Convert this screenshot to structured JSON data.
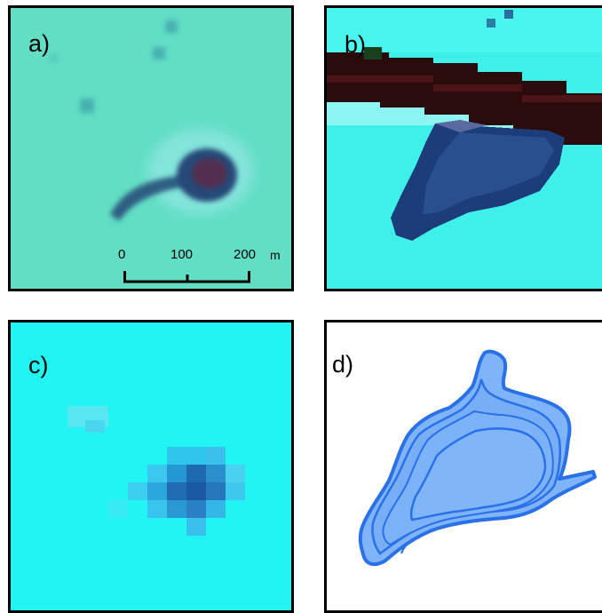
{
  "panels": {
    "a": {
      "label": "a)"
    },
    "b": {
      "label": "b)"
    },
    "c": {
      "label": "c)"
    },
    "d": {
      "label": "d)"
    }
  },
  "scalebar": {
    "ticks": [
      "0",
      "100",
      "200"
    ],
    "unit": "m"
  }
}
